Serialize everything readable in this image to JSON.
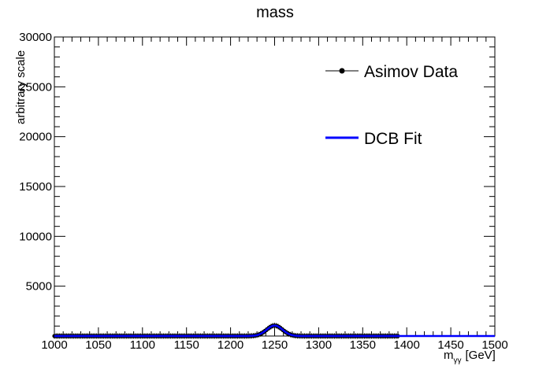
{
  "chart_data": {
    "type": "line",
    "title": "mass",
    "xlabel": "m",
    "xlabel_sub": "γγ",
    "xlabel_unit": "[GeV]",
    "ylabel": "arbitrary scale",
    "xlim": [
      1000,
      1500
    ],
    "ylim": [
      0,
      30000
    ],
    "xticks": [
      "1000",
      "1050",
      "1100",
      "1150",
      "1200",
      "1250",
      "1300",
      "1350",
      "1400",
      "1450",
      "1500"
    ],
    "yticks": [
      "5000",
      "10000",
      "15000",
      "20000",
      "25000",
      "30000"
    ],
    "grid": false,
    "legend_position": "top-right",
    "series": [
      {
        "name": "Asimov Data",
        "style": "points",
        "color": "#000000",
        "x_range": [
          1000,
          1390
        ],
        "bin_width": 2,
        "peak_mean": 1250,
        "peak_sigma": 9,
        "peak_height": 1050,
        "baseline": 0
      },
      {
        "name": "DCB Fit",
        "style": "line",
        "color": "#0000ff",
        "x_range": [
          1000,
          1500
        ],
        "peak_mean": 1250,
        "peak_sigma": 9,
        "peak_height": 1050,
        "baseline": 0
      }
    ]
  }
}
